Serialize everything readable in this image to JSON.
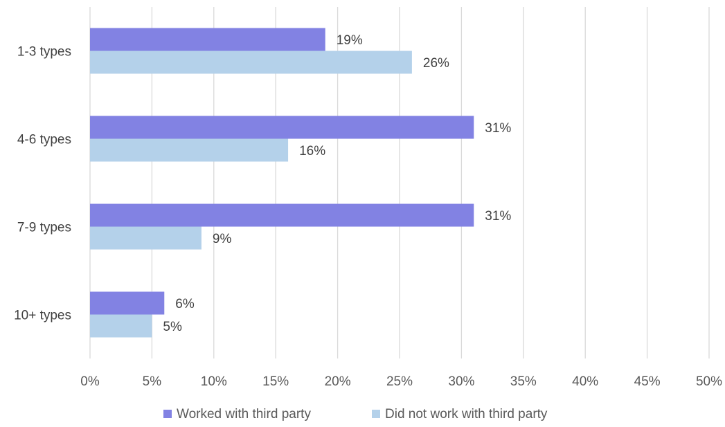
{
  "chart_data": {
    "type": "bar",
    "orientation": "horizontal",
    "categories": [
      "1-3 types",
      "4-6 types",
      "7-9 types",
      "10+ types"
    ],
    "series": [
      {
        "name": "Worked with third party",
        "values": [
          19,
          31,
          31,
          6
        ],
        "labels": [
          "19%",
          "31%",
          "31%",
          "6%"
        ],
        "color": "#8282e3"
      },
      {
        "name": "Did not work with third party",
        "values": [
          26,
          16,
          9,
          5
        ],
        "labels": [
          "26%",
          "16%",
          "9%",
          "5%"
        ],
        "color": "#b4d1ea"
      }
    ],
    "xlim": [
      0,
      50
    ],
    "xticks": [
      0,
      5,
      10,
      15,
      20,
      25,
      30,
      35,
      40,
      45,
      50
    ],
    "xtick_labels": [
      "0%",
      "5%",
      "10%",
      "15%",
      "20%",
      "25%",
      "30%",
      "35%",
      "40%",
      "45%",
      "50%"
    ],
    "gridlines": "vertical",
    "gridline_color": "#d9d9d9",
    "legend": "bottom",
    "title": "",
    "xlabel": "",
    "ylabel": ""
  }
}
